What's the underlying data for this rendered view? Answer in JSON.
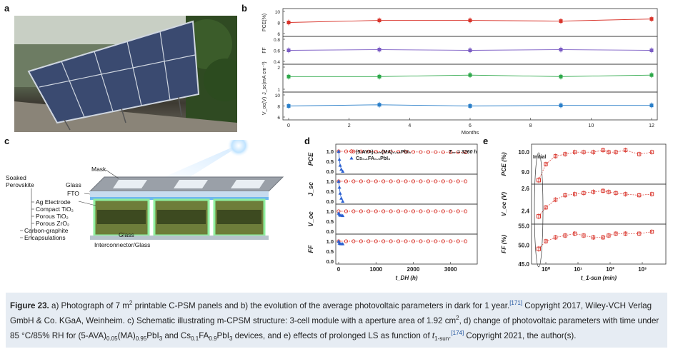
{
  "letters": {
    "a": "a",
    "b": "b",
    "c": "c",
    "d": "d",
    "e": "e"
  },
  "panel_b": {
    "xlabel": "Months",
    "x_ticks": [
      "0",
      "2",
      "4",
      "6",
      "8",
      "10",
      "12"
    ],
    "rows": [
      {
        "ylabel": "PCE(%)",
        "ticks": [
          "10",
          "8",
          "6"
        ],
        "color": "#d9342b",
        "x": [
          0,
          3,
          6,
          9,
          12
        ],
        "y": [
          8.0,
          8.3,
          8.3,
          8.2,
          8.5
        ],
        "ylim": [
          6,
          10
        ]
      },
      {
        "ylabel": "FF",
        "ticks": [
          "0.8",
          "0.6",
          "0.4"
        ],
        "color": "#7b5cc4",
        "x": [
          0,
          3,
          6,
          9,
          12
        ],
        "y": [
          0.6,
          0.61,
          0.6,
          0.61,
          0.6
        ],
        "ylim": [
          0.4,
          0.8
        ]
      },
      {
        "ylabel": "J_sc(mA cm⁻²)",
        "ticks": [
          "2",
          "1"
        ],
        "color": "#2ea84a",
        "x": [
          0,
          3,
          6,
          9,
          12
        ],
        "y": [
          1.6,
          1.6,
          1.7,
          1.6,
          1.7
        ],
        "ylim": [
          0.6,
          2.4
        ]
      },
      {
        "ylabel": "V_oc(V)",
        "ticks": [
          "10",
          "8",
          "6"
        ],
        "color": "#2a7fc9",
        "x": [
          0,
          3,
          6,
          9,
          12
        ],
        "y": [
          8.3,
          8.5,
          8.3,
          8.4,
          8.4
        ],
        "ylim": [
          6,
          10.6
        ]
      }
    ]
  },
  "panel_c": {
    "labels": [
      "Mask",
      "Soaked",
      "Perovskite",
      "Glass",
      "FTO",
      "Ag Electrode",
      "Compact TiO₂",
      "Porous TiO₂",
      "Porous ZrO₂",
      "Carbon-graphite",
      "Encapsulations",
      "Glass",
      "Interconnector/Glass"
    ]
  },
  "panel_d": {
    "xlabel": "t_DH (h)",
    "x_ticks": [
      "0",
      "1000",
      "2000",
      "3000"
    ],
    "ylabels": [
      "PCE",
      "J_sc",
      "V_oc",
      "FF"
    ],
    "y_ticks": [
      "1.0",
      "0.5",
      "0.0"
    ],
    "legend": [
      "(5-AVA)₀.₀₅(MA)₀.₉₅PbI₃",
      "Cs₀.₁FA₀.₉PbI₃"
    ],
    "t90": "T₉₀ = 3260 h",
    "series_colors": [
      "#d9342b",
      "#2a5fd0"
    ]
  },
  "panel_e": {
    "xlabel": "t_1-sun (min)",
    "ylabels": [
      "PCE (%)",
      "V_oc (V)",
      "FF (%)"
    ],
    "ticks": [
      [
        "10.0",
        "9.0"
      ],
      [
        "2.6",
        "2.4"
      ],
      [
        "55.0",
        "50.0",
        "45.0"
      ]
    ],
    "initial": "Initial",
    "x_ticks": [
      "10⁰",
      "10¹",
      "10²",
      "10³"
    ],
    "color": "#d9342b"
  },
  "caption": {
    "figure": "Figure 23.",
    "text": [
      "a) Photograph of 7 m",
      "2",
      " printable C-PSM panels and b) the evolution of the average photovoltaic parameters in dark for 1 year.",
      "[171]",
      " Copyright 2017, Wiley-VCH Verlag GmbH & Co. KGaA, Weinheim. c) Schematic illustrating m-CPSM structure: 3-cell module with a aperture area of 1.92 cm",
      "2",
      ", d) change of photovoltaic parameters with time under 85 °C/85% RH for (5-AVA)",
      "0.05",
      "(MA)",
      "0.95",
      "PbI",
      "3",
      " and Cs",
      "0.1",
      "FA",
      "0.9",
      "PbI",
      "3",
      " devices, and e) effects of prolonged LS as function of ",
      "t",
      "1-sun",
      ".",
      "[174]",
      " Copyright 2021, the author(s)."
    ]
  }
}
